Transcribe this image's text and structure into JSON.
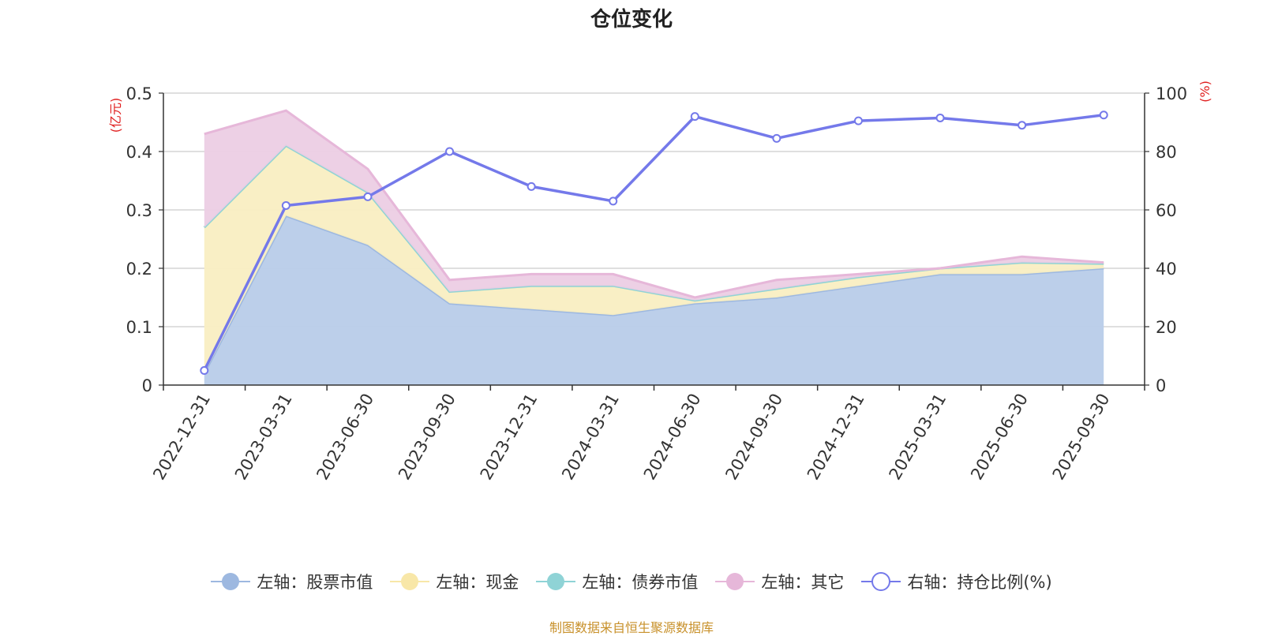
{
  "chart_data": {
    "type": "area",
    "title": "仓位变化",
    "categories": [
      "2022-12-31",
      "2023-03-31",
      "2023-06-30",
      "2023-09-30",
      "2023-12-31",
      "2024-03-31",
      "2024-06-30",
      "2024-09-30",
      "2024-12-31",
      "2025-03-31",
      "2025-06-30",
      "2025-09-30"
    ],
    "left_axis": {
      "unit": "(亿元)",
      "ylim": [
        0,
        0.5
      ],
      "ticks": [
        "0",
        "0.1",
        "0.2",
        "0.3",
        "0.4",
        "0.5"
      ]
    },
    "right_axis": {
      "unit": "(%)",
      "ylim": [
        0,
        100
      ],
      "ticks": [
        "0",
        "20",
        "40",
        "60",
        "80",
        "100"
      ]
    },
    "series": [
      {
        "name": "左轴：股票市值",
        "axis": "left",
        "stack": true,
        "color": "#9db8e0",
        "fill": "#b8cce9",
        "values": [
          0.02,
          0.29,
          0.24,
          0.14,
          0.13,
          0.12,
          0.14,
          0.15,
          0.17,
          0.19,
          0.19,
          0.2
        ]
      },
      {
        "name": "左轴：现金",
        "axis": "left",
        "stack": true,
        "color": "#f8e7a8",
        "fill": "#f9eec2",
        "values": [
          0.25,
          0.12,
          0.09,
          0.02,
          0.04,
          0.05,
          0.005,
          0.015,
          0.015,
          0.01,
          0.02,
          0.008
        ]
      },
      {
        "name": "左轴：债券市值",
        "axis": "left",
        "stack": true,
        "color": "#8fd3d6",
        "fill": "#bfe6e8",
        "values": [
          0,
          0,
          0,
          0,
          0,
          0,
          0,
          0,
          0,
          0,
          0,
          0
        ]
      },
      {
        "name": "左轴：其它",
        "axis": "left",
        "stack": true,
        "color": "#e6b7d9",
        "fill": "#eccde4",
        "values": [
          0.16,
          0.06,
          0.04,
          0.02,
          0.02,
          0.02,
          0.005,
          0.015,
          0.005,
          0.0,
          0.01,
          0.002
        ]
      },
      {
        "name": "右轴：持仓比例(%)",
        "axis": "right",
        "type": "line",
        "color": "#7479ea",
        "values": [
          5,
          61.5,
          64.5,
          80,
          68,
          63,
          92,
          84.5,
          90.5,
          91.5,
          89,
          92.5
        ]
      }
    ]
  },
  "footer": "制图数据来自恒生聚源数据库"
}
